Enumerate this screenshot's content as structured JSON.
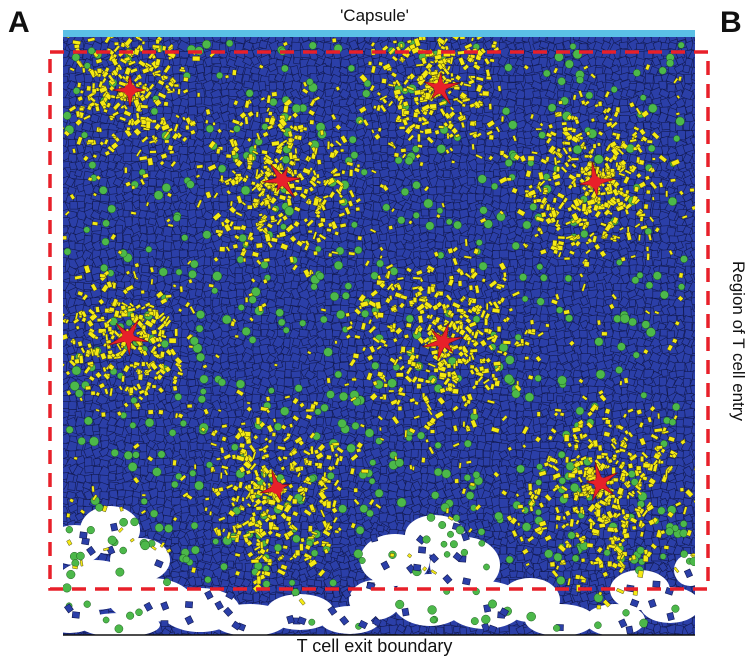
{
  "panel_labels": {
    "a": "A",
    "b": "B"
  },
  "labels": {
    "capsule": "'Capsule'",
    "exit_boundary": "T cell exit boundary",
    "entry_region": "Region of T cell entry"
  },
  "colors": {
    "capsule_bar": "#5BC0E6",
    "entry_region_dash": "#E8202A",
    "t_cell": "#2B3FA8",
    "t_cell_outline": "#121a50",
    "green_cell": "#4CB84A",
    "yellow_cell": "#F5EA14",
    "dendritic_cell": "#E8202A",
    "exit_zone": "#ffffff"
  },
  "cell_types": [
    "t-cell",
    "green-cell",
    "yellow-cell",
    "dendritic-cell"
  ]
}
